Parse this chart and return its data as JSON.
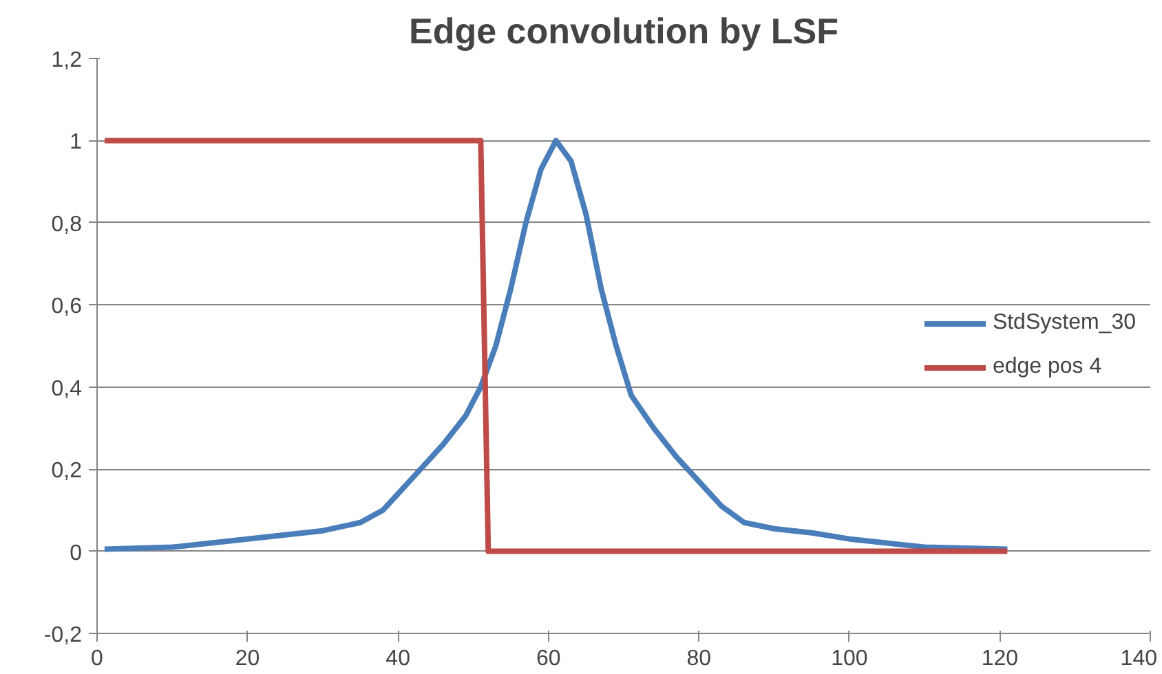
{
  "chart_data": {
    "type": "line",
    "title": "Edge convolution by LSF",
    "series": [
      {
        "name": "StdSystem_30",
        "color": "#4a7ebb",
        "x": [
          1,
          10,
          20,
          30,
          35,
          38,
          40,
          43,
          46,
          49,
          51,
          53,
          55,
          57,
          59,
          61,
          63,
          65,
          67,
          69,
          71,
          74,
          77,
          80,
          83,
          86,
          90,
          95,
          100,
          105,
          110,
          121
        ],
        "values": [
          0.005,
          0.01,
          0.03,
          0.05,
          0.07,
          0.1,
          0.14,
          0.2,
          0.26,
          0.33,
          0.4,
          0.5,
          0.64,
          0.8,
          0.93,
          1.0,
          0.95,
          0.82,
          0.64,
          0.5,
          0.38,
          0.3,
          0.23,
          0.17,
          0.11,
          0.07,
          0.055,
          0.045,
          0.03,
          0.02,
          0.01,
          0.005
        ]
      },
      {
        "name": "edge pos 4",
        "color": "#be4b48",
        "x": [
          1,
          51,
          52,
          121
        ],
        "values": [
          1,
          1,
          0,
          0
        ]
      }
    ],
    "xlim": [
      0,
      140
    ],
    "xticks": [
      0,
      20,
      40,
      60,
      80,
      100,
      120,
      140
    ],
    "ylim": [
      -0.2,
      1.2
    ],
    "yticks": [
      {
        "value": -0.2,
        "label": "-0,2"
      },
      0,
      {
        "value": 0.2,
        "label": "0,2"
      },
      {
        "value": 0.4,
        "label": "0,4"
      },
      {
        "value": 0.6,
        "label": "0,6"
      },
      {
        "value": 0.8,
        "label": "0,8"
      },
      1,
      {
        "value": 1.2,
        "label": "1,2"
      }
    ],
    "grid": "y",
    "legend": "right",
    "marker": "none",
    "line_style": "solid"
  }
}
